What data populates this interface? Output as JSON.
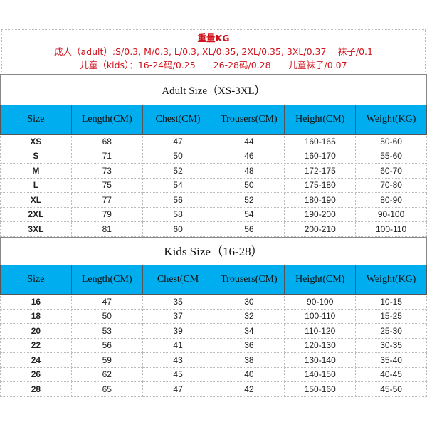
{
  "weight_note": {
    "title": "重量KG",
    "adult_line": "成人（adult）:S/0.3, M/0.3, L/0.3, XL/0.35, 2XL/0.35, 3XL/0.37　 袜子/0.1",
    "kids_line": "儿童（kids）：16-24码/0.25　　26-28码/0.28　　儿童袜子/0.07"
  },
  "colors": {
    "header_bg": "#00aeef",
    "note_text": "#d0121b"
  },
  "adult": {
    "title": "Adult Size（XS-3XL）",
    "headers": [
      "Size",
      "Length(CM)",
      "Chest(CM)",
      "Trousers(CM)",
      "Height(CM)",
      "Weight(KG)"
    ],
    "rows": [
      [
        "XS",
        "68",
        "47",
        "44",
        "160-165",
        "50-60"
      ],
      [
        "S",
        "71",
        "50",
        "46",
        "160-170",
        "55-60"
      ],
      [
        "M",
        "73",
        "52",
        "48",
        "172-175",
        "60-70"
      ],
      [
        "L",
        "75",
        "54",
        "50",
        "175-180",
        "70-80"
      ],
      [
        "XL",
        "77",
        "56",
        "52",
        "180-190",
        "80-90"
      ],
      [
        "2XL",
        "79",
        "58",
        "54",
        "190-200",
        "90-100"
      ],
      [
        "3XL",
        "81",
        "60",
        "56",
        "200-210",
        "100-110"
      ]
    ]
  },
  "kids": {
    "title": "Kids Size（16-28）",
    "headers": [
      "Size",
      "Length(CM)",
      "Chest(CM",
      "Trousers(CM)",
      "Height(CM)",
      "Weight(KG)"
    ],
    "rows": [
      [
        "16",
        "47",
        "35",
        "30",
        "90-100",
        "10-15"
      ],
      [
        "18",
        "50",
        "37",
        "32",
        "100-110",
        "15-25"
      ],
      [
        "20",
        "53",
        "39",
        "34",
        "110-120",
        "25-30"
      ],
      [
        "22",
        "56",
        "41",
        "36",
        "120-130",
        "30-35"
      ],
      [
        "24",
        "59",
        "43",
        "38",
        "130-140",
        "35-40"
      ],
      [
        "26",
        "62",
        "45",
        "40",
        "140-150",
        "40-45"
      ],
      [
        "28",
        "65",
        "47",
        "42",
        "150-160",
        "45-50"
      ]
    ]
  }
}
